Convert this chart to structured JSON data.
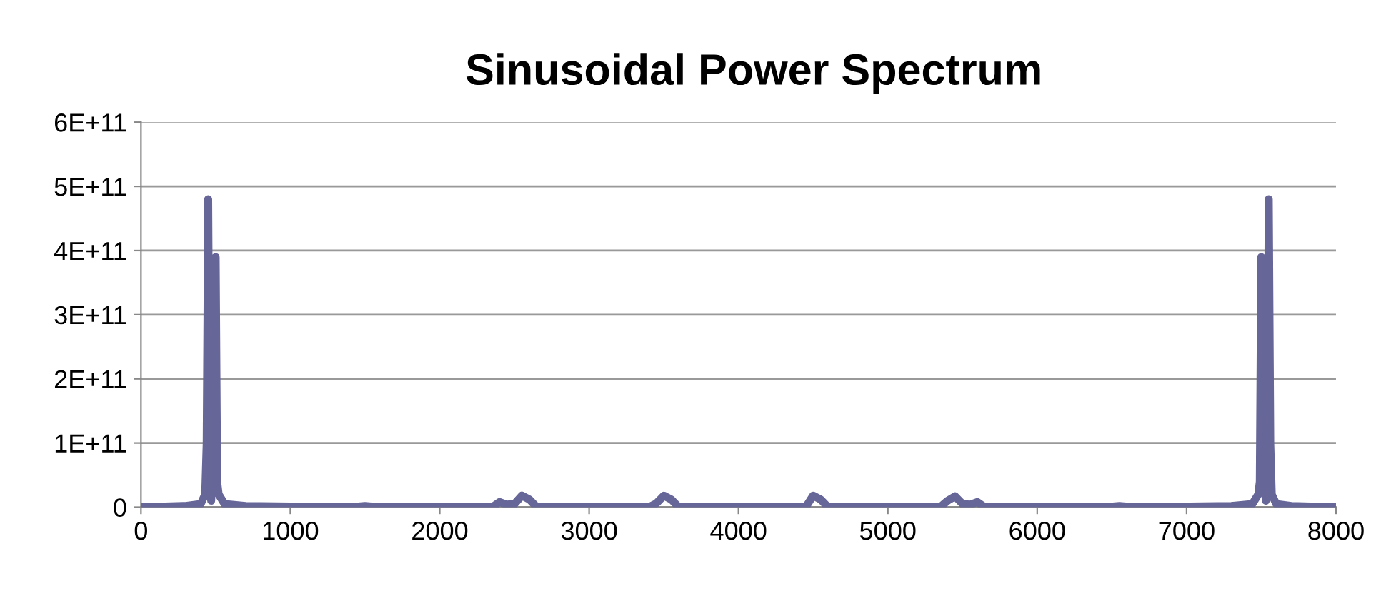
{
  "chart_data": {
    "type": "line",
    "title": "Sinusoidal Power Spectrum",
    "x": [
      0,
      300,
      400,
      430,
      440,
      450,
      460,
      470,
      480,
      490,
      500,
      510,
      520,
      560,
      700,
      1400,
      1500,
      1600,
      2350,
      2400,
      2450,
      2500,
      2550,
      2600,
      2650,
      3400,
      3450,
      3500,
      3550,
      3600,
      4450,
      4500,
      4550,
      4600,
      5350,
      5400,
      5450,
      5500,
      5550,
      5600,
      5650,
      6450,
      6550,
      6650,
      7300,
      7440,
      7480,
      7490,
      7500,
      7510,
      7520,
      7530,
      7540,
      7550,
      7560,
      7570,
      7600,
      7700,
      8000
    ],
    "values": [
      0,
      2000000000,
      5000000000,
      20000000000,
      100000000000,
      480000000000,
      60000000000,
      10000000000,
      60000000000,
      200000000000,
      390000000000,
      40000000000,
      20000000000,
      5000000000,
      2000000000,
      0,
      2000000000,
      0,
      0,
      8000000000,
      4000000000,
      5000000000,
      18000000000,
      12000000000,
      0,
      0,
      6000000000,
      18000000000,
      12000000000,
      0,
      0,
      18000000000,
      12000000000,
      0,
      0,
      10000000000,
      17000000000,
      5000000000,
      4000000000,
      8000000000,
      0,
      0,
      2000000000,
      0,
      2000000000,
      5000000000,
      20000000000,
      40000000000,
      390000000000,
      200000000000,
      60000000000,
      10000000000,
      60000000000,
      480000000000,
      100000000000,
      20000000000,
      5000000000,
      2000000000,
      0
    ],
    "color": "#666699",
    "xlim": [
      0,
      8000
    ],
    "xticks": [
      0,
      1000,
      2000,
      3000,
      4000,
      5000,
      6000,
      7000,
      8000
    ],
    "ylim": [
      0,
      600000000000
    ],
    "yticks": [
      {
        "value": 0,
        "label": "0"
      },
      {
        "value": 100000000000,
        "label": "1E+11"
      },
      {
        "value": 200000000000,
        "label": "2E+11"
      },
      {
        "value": 300000000000,
        "label": "3E+11"
      },
      {
        "value": 400000000000,
        "label": "4E+11"
      },
      {
        "value": 500000000000,
        "label": "5E+11"
      },
      {
        "value": 600000000000,
        "label": "6E+11"
      }
    ],
    "grid": "y",
    "legend": false,
    "marker": "none",
    "line_style": "solid"
  }
}
